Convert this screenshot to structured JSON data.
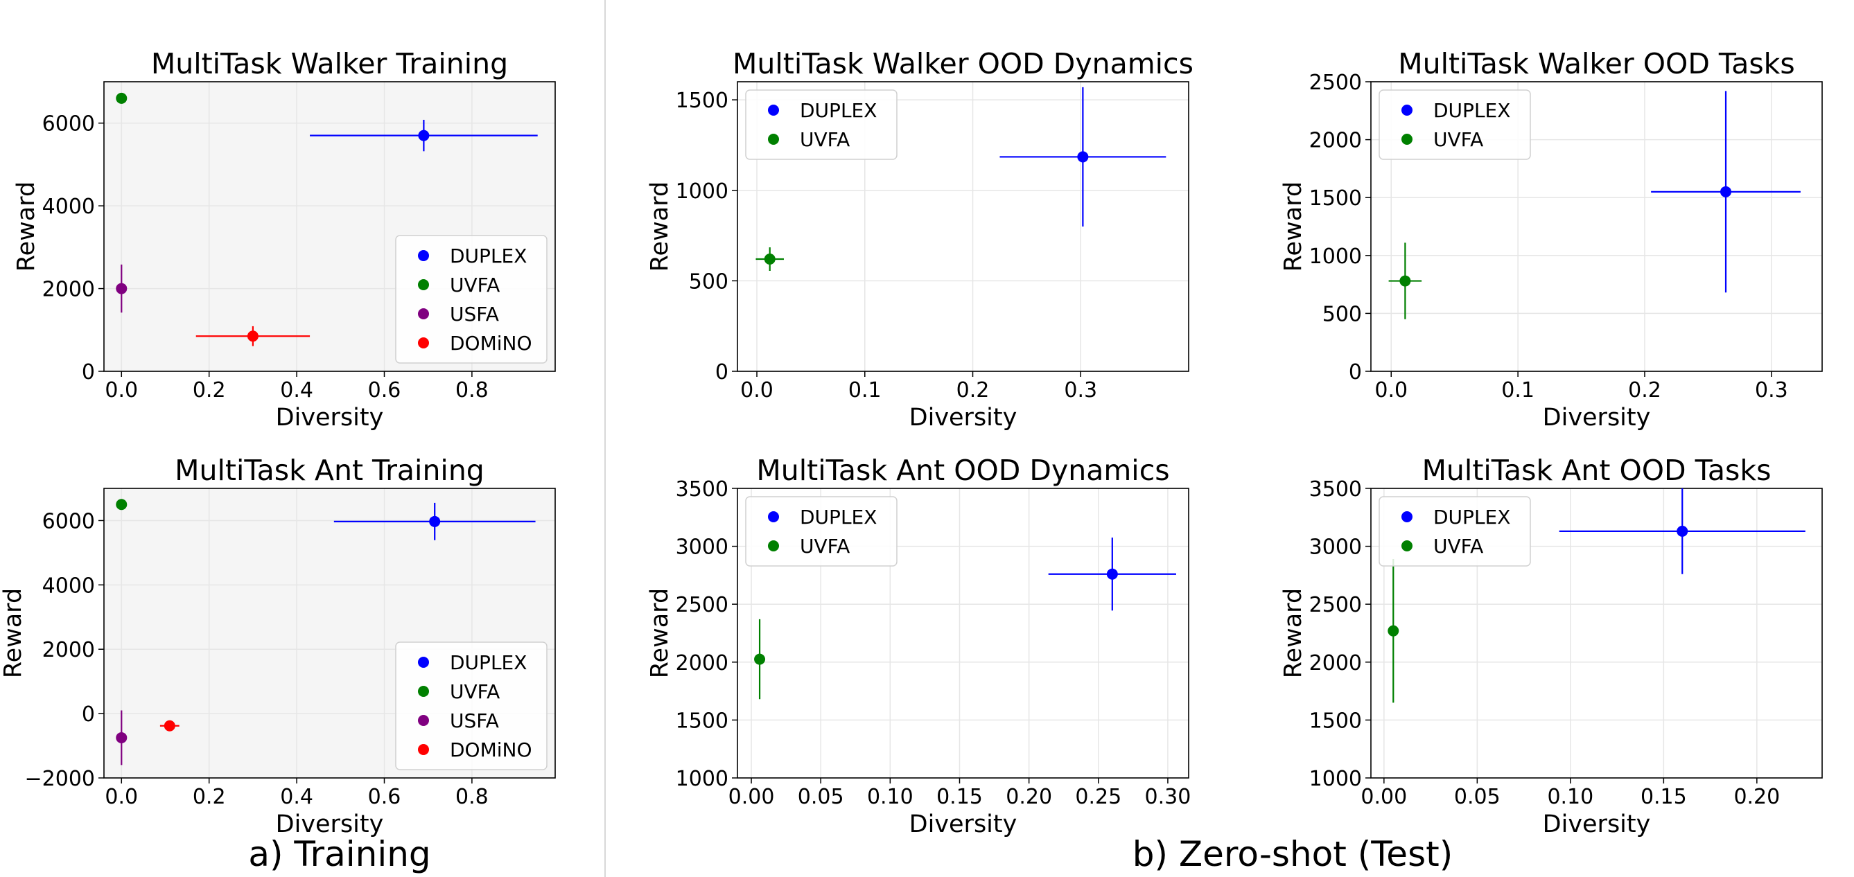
{
  "sections": [
    {
      "label": "a) Training"
    },
    {
      "label": "b) Zero-shot (Test)"
    }
  ],
  "colors": {
    "DUPLEX": "#0000ff",
    "UVFA": "#008000",
    "USFA": "#800080",
    "DOMiNO": "#ff0000"
  },
  "chart_data": [
    {
      "type": "scatter",
      "title": "MultiTask Walker Training",
      "xlabel": "Diversity",
      "ylabel": "Reward",
      "xlim": [
        -0.04,
        0.99
      ],
      "ylim": [
        0,
        7000
      ],
      "xticks": [
        0,
        0.2,
        0.4,
        0.6,
        0.8
      ],
      "xtick_labels": [
        "0.0",
        "0.2",
        "0.4",
        "0.6",
        "0.8"
      ],
      "yticks": [
        0,
        2000,
        4000,
        6000
      ],
      "ytick_labels": [
        "0",
        "2000",
        "4000",
        "6000"
      ],
      "grid": true,
      "shaded_background": true,
      "legend": "bottom-right",
      "series": [
        {
          "name": "DUPLEX",
          "x": 0.69,
          "y": 5700,
          "xerr": [
            0.26,
            0.26
          ],
          "yerr": [
            380,
            380
          ]
        },
        {
          "name": "UVFA",
          "x": 0.0,
          "y": 6600,
          "xerr": [
            0,
            0
          ],
          "yerr": [
            130,
            130
          ]
        },
        {
          "name": "USFA",
          "x": 0.0,
          "y": 2000,
          "xerr": [
            0,
            0
          ],
          "yerr": [
            580,
            580
          ]
        },
        {
          "name": "DOMiNO",
          "x": 0.3,
          "y": 850,
          "xerr": [
            0.13,
            0.13
          ],
          "yerr": [
            240,
            240
          ]
        }
      ]
    },
    {
      "type": "scatter",
      "title": "MultiTask Walker OOD Dynamics",
      "xlabel": "Diversity",
      "ylabel": "Reward",
      "xlim": [
        -0.018,
        0.4
      ],
      "ylim": [
        0,
        1600
      ],
      "xticks": [
        0,
        0.1,
        0.2,
        0.3
      ],
      "xtick_labels": [
        "0.0",
        "0.1",
        "0.2",
        "0.3"
      ],
      "yticks": [
        0,
        500,
        1000,
        1500
      ],
      "ytick_labels": [
        "0",
        "500",
        "1000",
        "1500"
      ],
      "grid": true,
      "shaded_background": false,
      "legend": "top-left",
      "series": [
        {
          "name": "DUPLEX",
          "x": 0.302,
          "y": 1185,
          "xerr": [
            0.077,
            0.077
          ],
          "yerr": [
            385,
            385
          ]
        },
        {
          "name": "UVFA",
          "x": 0.012,
          "y": 620,
          "xerr": [
            0.013,
            0.013
          ],
          "yerr": [
            65,
            65
          ]
        }
      ]
    },
    {
      "type": "scatter",
      "title": "MultiTask Walker OOD Tasks",
      "xlabel": "Diversity",
      "ylabel": "Reward",
      "xlim": [
        -0.016,
        0.34
      ],
      "ylim": [
        0,
        2500
      ],
      "xticks": [
        0,
        0.1,
        0.2,
        0.3
      ],
      "xtick_labels": [
        "0.0",
        "0.1",
        "0.2",
        "0.3"
      ],
      "yticks": [
        0,
        500,
        1000,
        1500,
        2000,
        2500
      ],
      "ytick_labels": [
        "0",
        "500",
        "1000",
        "1500",
        "2000",
        "2500"
      ],
      "grid": true,
      "shaded_background": false,
      "legend": "top-left",
      "series": [
        {
          "name": "DUPLEX",
          "x": 0.264,
          "y": 1550,
          "xerr": [
            0.059,
            0.059
          ],
          "yerr": [
            870,
            870
          ]
        },
        {
          "name": "UVFA",
          "x": 0.011,
          "y": 780,
          "xerr": [
            0.013,
            0.013
          ],
          "yerr": [
            330,
            330
          ]
        }
      ]
    },
    {
      "type": "scatter",
      "title": "MultiTask Ant Training",
      "xlabel": "Diversity",
      "ylabel": "Reward",
      "xlim": [
        -0.04,
        0.99
      ],
      "ylim": [
        -2000,
        7000
      ],
      "xticks": [
        0,
        0.2,
        0.4,
        0.6,
        0.8
      ],
      "xtick_labels": [
        "0.0",
        "0.2",
        "0.4",
        "0.6",
        "0.8"
      ],
      "yticks": [
        -2000,
        0,
        2000,
        4000,
        6000
      ],
      "ytick_labels": [
        "−2000",
        "0",
        "2000",
        "4000",
        "6000"
      ],
      "grid": true,
      "shaded_background": true,
      "legend": "bottom-right",
      "series": [
        {
          "name": "DUPLEX",
          "x": 0.715,
          "y": 5970,
          "xerr": [
            0.23,
            0.23
          ],
          "yerr": [
            580,
            580
          ]
        },
        {
          "name": "UVFA",
          "x": 0.0,
          "y": 6500,
          "xerr": [
            0,
            0
          ],
          "yerr": [
            120,
            120
          ]
        },
        {
          "name": "USFA",
          "x": 0.0,
          "y": -750,
          "xerr": [
            0,
            0
          ],
          "yerr": [
            850,
            850
          ]
        },
        {
          "name": "DOMiNO",
          "x": 0.11,
          "y": -380,
          "xerr": [
            0.022,
            0.022
          ],
          "yerr": [
            130,
            130
          ]
        }
      ]
    },
    {
      "type": "scatter",
      "title": "MultiTask Ant OOD Dynamics",
      "xlabel": "Diversity",
      "ylabel": "Reward",
      "xlim": [
        -0.01,
        0.315
      ],
      "ylim": [
        1000,
        3500
      ],
      "xticks": [
        0,
        0.05,
        0.1,
        0.15,
        0.2,
        0.25,
        0.3
      ],
      "xtick_labels": [
        "0.00",
        "0.05",
        "0.10",
        "0.15",
        "0.20",
        "0.25",
        "0.30"
      ],
      "yticks": [
        1000,
        1500,
        2000,
        2500,
        3000,
        3500
      ],
      "ytick_labels": [
        "1000",
        "1500",
        "2000",
        "2500",
        "3000",
        "3500"
      ],
      "grid": true,
      "shaded_background": false,
      "legend": "top-left",
      "series": [
        {
          "name": "DUPLEX",
          "x": 0.26,
          "y": 2760,
          "xerr": [
            0.046,
            0.046
          ],
          "yerr": [
            315,
            315
          ]
        },
        {
          "name": "UVFA",
          "x": 0.006,
          "y": 2025,
          "xerr": [
            0,
            0
          ],
          "yerr": [
            345,
            345
          ]
        }
      ]
    },
    {
      "type": "scatter",
      "title": "MultiTask Ant OOD Tasks",
      "xlabel": "Diversity",
      "ylabel": "Reward",
      "xlim": [
        -0.007,
        0.235
      ],
      "ylim": [
        1000,
        3500
      ],
      "xticks": [
        0,
        0.05,
        0.1,
        0.15,
        0.2
      ],
      "xtick_labels": [
        "0.00",
        "0.05",
        "0.10",
        "0.15",
        "0.20"
      ],
      "yticks": [
        1000,
        1500,
        2000,
        2500,
        3000,
        3500
      ],
      "ytick_labels": [
        "1000",
        "1500",
        "2000",
        "2500",
        "3000",
        "3500"
      ],
      "grid": true,
      "shaded_background": false,
      "legend": "top-left",
      "series": [
        {
          "name": "DUPLEX",
          "x": 0.16,
          "y": 3130,
          "xerr": [
            0.066,
            0.066
          ],
          "yerr": [
            370,
            370
          ]
        },
        {
          "name": "UVFA",
          "x": 0.005,
          "y": 2270,
          "xerr": [
            0,
            0
          ],
          "yerr": [
            620,
            620
          ]
        }
      ]
    }
  ]
}
